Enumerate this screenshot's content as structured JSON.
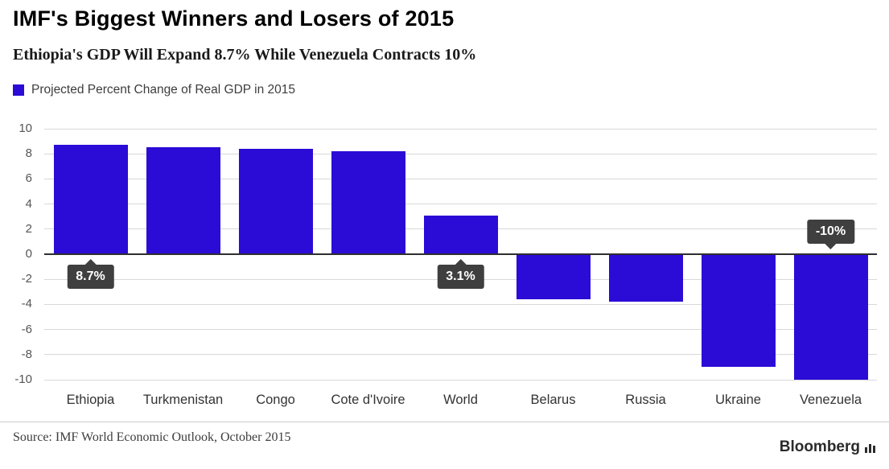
{
  "header": {
    "title": "IMF's Biggest Winners and Losers of 2015",
    "subtitle": "Ethiopia's GDP Will Expand 8.7% While Venezuela Contracts 10%"
  },
  "legend": {
    "label": "Projected Percent Change of Real GDP in 2015",
    "swatch_color": "#2b0bd6"
  },
  "chart_data": {
    "type": "bar",
    "title": "IMF's Biggest Winners and Losers of 2015",
    "subtitle": "Ethiopia's GDP Will Expand 8.7% While Venezuela Contracts 10%",
    "series_label": "Projected Percent Change of Real GDP in 2015",
    "categories": [
      "Ethiopia",
      "Turkmenistan",
      "Congo",
      "Cote d'Ivoire",
      "World",
      "Belarus",
      "Russia",
      "Ukraine",
      "Venezuela"
    ],
    "values": [
      8.7,
      8.5,
      8.4,
      8.2,
      3.1,
      -3.6,
      -3.8,
      -9.0,
      -10.0
    ],
    "ylim": [
      -10,
      10
    ],
    "yticks": [
      10,
      8,
      6,
      4,
      2,
      0,
      -2,
      -4,
      -6,
      -8,
      -10
    ],
    "bar_color": "#2b0bd6",
    "grid": true,
    "legend_position": "top-left",
    "annotations": [
      {
        "category": "Ethiopia",
        "text": "8.7%"
      },
      {
        "category": "World",
        "text": "3.1%"
      },
      {
        "category": "Venezuela",
        "text": "-10%"
      }
    ]
  },
  "footer": {
    "source": "Source: IMF World Economic Outlook, October 2015",
    "brand": "Bloomberg"
  },
  "colors": {
    "callout_bg": "#3f3f3f",
    "gridline": "#d8d8d8",
    "zero_line": "#2f2f2f"
  }
}
